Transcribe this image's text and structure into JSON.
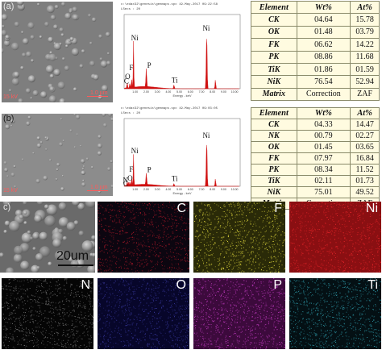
{
  "panels": {
    "a": {
      "label": "(a)",
      "sem_scale": "1.0 µm",
      "sem_info": "15 kV",
      "eds": {
        "header_line1": "c:\\edax32\\genesis\\genmaps.spc  19-May-2017 09:22:58",
        "header_line2": "LSecs : 20",
        "xlabel": "Energy - keV",
        "peak_labels": [
          "Ni",
          "O",
          "F",
          "C",
          "P",
          "Ti",
          "Ni"
        ]
      },
      "table": {
        "headers": [
          "Element",
          "Wt%",
          "At%"
        ],
        "rows": [
          {
            "el": "CK",
            "wt": "04.64",
            "at": "15.78"
          },
          {
            "el": "OK",
            "wt": "01.48",
            "at": "03.79"
          },
          {
            "el": "FK",
            "wt": "06.62",
            "at": "14.22"
          },
          {
            "el": "PK",
            "wt": "08.86",
            "at": "11.68"
          },
          {
            "el": "TiK",
            "wt": "01.86",
            "at": "01.59"
          },
          {
            "el": "NiK",
            "wt": "76.54",
            "at": "52.94"
          },
          {
            "el": "Matrix",
            "wt": "Correction",
            "at": "ZAF"
          }
        ]
      }
    },
    "b": {
      "label": "(b)",
      "sem_scale": "1.0 µm",
      "sem_info": "15 kV",
      "eds": {
        "header_line1": "c:\\edax32\\genesis\\genmaps.spc  19-May-2017 09:03:05",
        "header_line2": "LSecs : 20",
        "xlabel": "Energy - keV",
        "peak_labels": [
          "Ni",
          "N",
          "O",
          "F",
          "C",
          "P",
          "Ti",
          "Ni"
        ]
      },
      "table": {
        "headers": [
          "Element",
          "Wt%",
          "At%"
        ],
        "rows": [
          {
            "el": "CK",
            "wt": "04.33",
            "at": "14.47"
          },
          {
            "el": "NK",
            "wt": "00.79",
            "at": "02.27"
          },
          {
            "el": "OK",
            "wt": "01.45",
            "at": "03.65"
          },
          {
            "el": "FK",
            "wt": "07.97",
            "at": "16.84"
          },
          {
            "el": "PK",
            "wt": "08.34",
            "at": "11.52"
          },
          {
            "el": "TiK",
            "wt": "02.11",
            "at": "01.73"
          },
          {
            "el": "NiK",
            "wt": "75.01",
            "at": "49.52"
          },
          {
            "el": "Matrix",
            "wt": "Correction",
            "at": "ZAF"
          }
        ]
      }
    },
    "c": {
      "label": "c)",
      "scale_text": "20um",
      "maps": [
        {
          "label": "C",
          "label_color": "#ffffff",
          "bg": "#0c0610",
          "dot": "#b01a2a"
        },
        {
          "label": "F",
          "label_color": "#ffffff",
          "bg": "#2a2a08",
          "dot": "#e8e040"
        },
        {
          "label": "Ni",
          "label_color": "#ffffff",
          "bg": "#8a0f12",
          "dot": "#e8252a"
        },
        {
          "label": "N",
          "label_color": "#ffffff",
          "bg": "#050505",
          "dot": "#7a7a7a"
        },
        {
          "label": "O",
          "label_color": "#ffffff",
          "bg": "#07062a",
          "dot": "#3a3aa0"
        },
        {
          "label": "P",
          "label_color": "#ffffff",
          "bg": "#3c0a3c",
          "dot": "#d040d0"
        },
        {
          "label": "Ti",
          "label_color": "#ffffff",
          "bg": "#041014",
          "dot": "#30a0b0"
        }
      ]
    }
  },
  "eds_axis": {
    "x_ticks": [
      "1.00",
      "2.00",
      "3.00",
      "4.00",
      "5.00",
      "6.00",
      "7.00",
      "8.00",
      "9.00",
      "10.00"
    ]
  },
  "colors": {
    "peak": "#d01010",
    "table_bg": "#fffbe0",
    "sem_bg": "#8a8a8a"
  }
}
